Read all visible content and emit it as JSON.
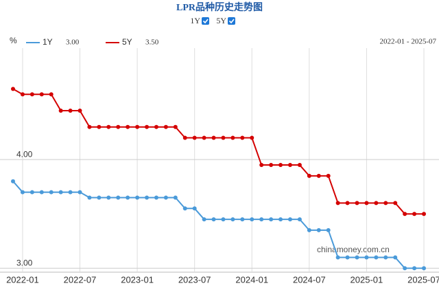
{
  "chart_data": {
    "type": "line",
    "title": "LPR品种历史走势图",
    "toggles": [
      "1Y",
      "5Y"
    ],
    "unit": "%",
    "range_label": "2022-01 - 2025-07",
    "watermark": "chinamoney.com.cn",
    "categories": [
      null,
      "2022-01",
      null,
      null,
      null,
      null,
      null,
      "2022-07",
      null,
      null,
      null,
      null,
      null,
      "2023-01",
      null,
      null,
      null,
      null,
      null,
      "2023-07",
      null,
      null,
      null,
      null,
      null,
      "2024-01",
      null,
      null,
      null,
      null,
      null,
      "2024-07",
      null,
      null,
      null,
      null,
      null,
      "2025-01",
      null,
      null,
      null,
      null,
      null,
      "2025-07"
    ],
    "series": [
      {
        "name": "1Y",
        "color": "#4a9ad9",
        "latest_label": "3.00",
        "values": [
          3.8,
          3.7,
          3.7,
          3.7,
          3.7,
          3.7,
          3.7,
          3.7,
          3.65,
          3.65,
          3.65,
          3.65,
          3.65,
          3.65,
          3.65,
          3.65,
          3.65,
          3.65,
          3.55,
          3.55,
          3.45,
          3.45,
          3.45,
          3.45,
          3.45,
          3.45,
          3.45,
          3.45,
          3.45,
          3.45,
          3.45,
          3.35,
          3.35,
          3.35,
          3.1,
          3.1,
          3.1,
          3.1,
          3.1,
          3.1,
          3.1,
          3.0,
          3.0,
          3.0
        ]
      },
      {
        "name": "5Y",
        "color": "#d40000",
        "latest_label": "3.50",
        "values": [
          4.65,
          4.6,
          4.6,
          4.6,
          4.6,
          4.45,
          4.45,
          4.45,
          4.3,
          4.3,
          4.3,
          4.3,
          4.3,
          4.3,
          4.3,
          4.3,
          4.3,
          4.3,
          4.2,
          4.2,
          4.2,
          4.2,
          4.2,
          4.2,
          4.2,
          4.2,
          3.95,
          3.95,
          3.95,
          3.95,
          3.95,
          3.85,
          3.85,
          3.85,
          3.6,
          3.6,
          3.6,
          3.6,
          3.6,
          3.6,
          3.6,
          3.5,
          3.5,
          3.5
        ]
      }
    ],
    "ylim": [
      2.97,
      5.0
    ],
    "yticks": [
      {
        "value": 3,
        "label": "3.00"
      },
      {
        "value": 4,
        "label": "4.00"
      }
    ],
    "grid": true
  }
}
